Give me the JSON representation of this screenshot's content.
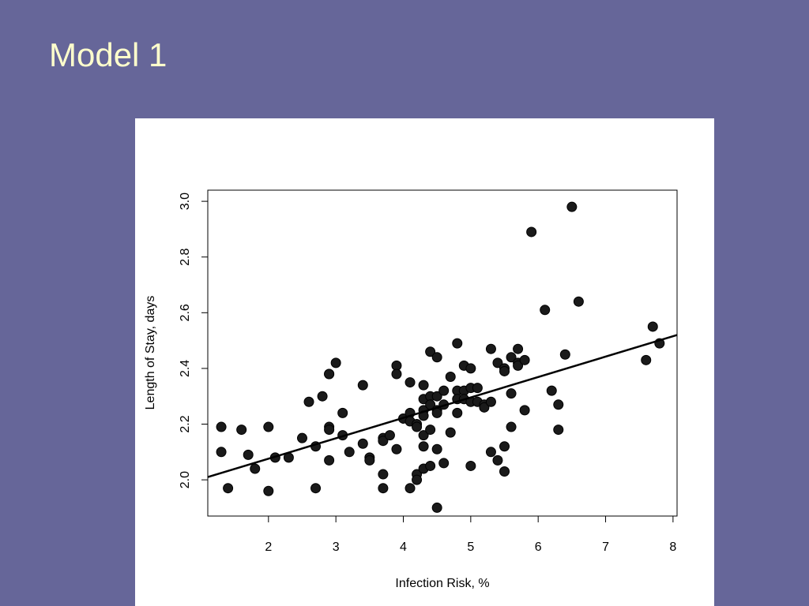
{
  "slide": {
    "title": "Model 1"
  },
  "chart_data": {
    "type": "scatter",
    "xlabel": "Infection Risk, %",
    "ylabel": "Length of Stay, days",
    "xlim": [
      1.1,
      8.06
    ],
    "ylim": [
      1.87,
      3.04
    ],
    "xticks": [
      "2",
      "3",
      "4",
      "5",
      "6",
      "7",
      "8"
    ],
    "yticks": [
      "2.0",
      "2.2",
      "2.4",
      "2.6",
      "2.8",
      "3.0"
    ],
    "grid": false,
    "legend": "none",
    "colors": {
      "points": "#1a1a1a",
      "line": "#000000",
      "background": "#ffffff",
      "slide": "#666699",
      "title": "#ffffcc"
    },
    "fit_line": {
      "x": [
        1.1,
        8.06
      ],
      "y": [
        2.01,
        2.52
      ]
    },
    "points": [
      [
        1.3,
        2.19
      ],
      [
        1.3,
        2.1
      ],
      [
        1.4,
        1.97
      ],
      [
        1.6,
        2.18
      ],
      [
        1.7,
        2.09
      ],
      [
        1.8,
        2.04
      ],
      [
        2.0,
        2.19
      ],
      [
        2.0,
        1.96
      ],
      [
        2.1,
        2.08
      ],
      [
        2.3,
        2.08
      ],
      [
        2.5,
        2.15
      ],
      [
        2.6,
        2.28
      ],
      [
        2.7,
        2.12
      ],
      [
        2.7,
        1.97
      ],
      [
        2.8,
        2.3
      ],
      [
        2.9,
        2.38
      ],
      [
        2.9,
        2.38
      ],
      [
        2.9,
        2.19
      ],
      [
        2.9,
        2.18
      ],
      [
        2.9,
        2.07
      ],
      [
        3.0,
        2.42
      ],
      [
        3.1,
        2.24
      ],
      [
        3.1,
        2.16
      ],
      [
        3.2,
        2.1
      ],
      [
        3.4,
        2.34
      ],
      [
        3.4,
        2.13
      ],
      [
        3.5,
        2.08
      ],
      [
        3.5,
        2.07
      ],
      [
        3.7,
        2.15
      ],
      [
        3.7,
        2.14
      ],
      [
        3.7,
        2.02
      ],
      [
        3.7,
        1.97
      ],
      [
        3.8,
        2.16
      ],
      [
        3.9,
        2.41
      ],
      [
        3.9,
        2.38
      ],
      [
        3.9,
        2.11
      ],
      [
        4.0,
        2.22
      ],
      [
        4.1,
        2.35
      ],
      [
        4.1,
        2.24
      ],
      [
        4.1,
        2.21
      ],
      [
        4.1,
        1.97
      ],
      [
        4.2,
        2.2
      ],
      [
        4.2,
        2.19
      ],
      [
        4.2,
        2.02
      ],
      [
        4.2,
        2.0
      ],
      [
        4.3,
        2.34
      ],
      [
        4.3,
        2.29
      ],
      [
        4.3,
        2.25
      ],
      [
        4.3,
        2.23
      ],
      [
        4.3,
        2.16
      ],
      [
        4.3,
        2.12
      ],
      [
        4.3,
        2.04
      ],
      [
        4.4,
        2.46
      ],
      [
        4.4,
        2.3
      ],
      [
        4.4,
        2.27
      ],
      [
        4.4,
        2.18
      ],
      [
        4.4,
        2.05
      ],
      [
        4.5,
        2.44
      ],
      [
        4.5,
        2.3
      ],
      [
        4.5,
        2.25
      ],
      [
        4.5,
        2.24
      ],
      [
        4.5,
        2.11
      ],
      [
        4.5,
        1.9
      ],
      [
        4.6,
        2.32
      ],
      [
        4.6,
        2.27
      ],
      [
        4.6,
        2.06
      ],
      [
        4.7,
        2.37
      ],
      [
        4.7,
        2.17
      ],
      [
        4.8,
        2.49
      ],
      [
        4.8,
        2.32
      ],
      [
        4.8,
        2.29
      ],
      [
        4.8,
        2.24
      ],
      [
        4.9,
        2.41
      ],
      [
        4.9,
        2.32
      ],
      [
        4.9,
        2.29
      ],
      [
        5.0,
        2.4
      ],
      [
        5.0,
        2.33
      ],
      [
        5.0,
        2.28
      ],
      [
        5.0,
        2.05
      ],
      [
        5.1,
        2.33
      ],
      [
        5.1,
        2.28
      ],
      [
        5.2,
        2.27
      ],
      [
        5.2,
        2.26
      ],
      [
        5.3,
        2.47
      ],
      [
        5.3,
        2.28
      ],
      [
        5.3,
        2.1
      ],
      [
        5.4,
        2.42
      ],
      [
        5.4,
        2.07
      ],
      [
        5.5,
        2.4
      ],
      [
        5.5,
        2.39
      ],
      [
        5.5,
        2.12
      ],
      [
        5.5,
        2.03
      ],
      [
        5.6,
        2.44
      ],
      [
        5.6,
        2.31
      ],
      [
        5.6,
        2.19
      ],
      [
        5.7,
        2.47
      ],
      [
        5.7,
        2.42
      ],
      [
        5.7,
        2.41
      ],
      [
        5.8,
        2.43
      ],
      [
        5.8,
        2.25
      ],
      [
        5.9,
        2.89
      ],
      [
        6.1,
        2.61
      ],
      [
        6.2,
        2.32
      ],
      [
        6.3,
        2.27
      ],
      [
        6.3,
        2.18
      ],
      [
        6.4,
        2.45
      ],
      [
        6.5,
        2.98
      ],
      [
        6.6,
        2.64
      ],
      [
        7.6,
        2.43
      ],
      [
        7.7,
        2.55
      ],
      [
        7.8,
        2.49
      ]
    ]
  }
}
